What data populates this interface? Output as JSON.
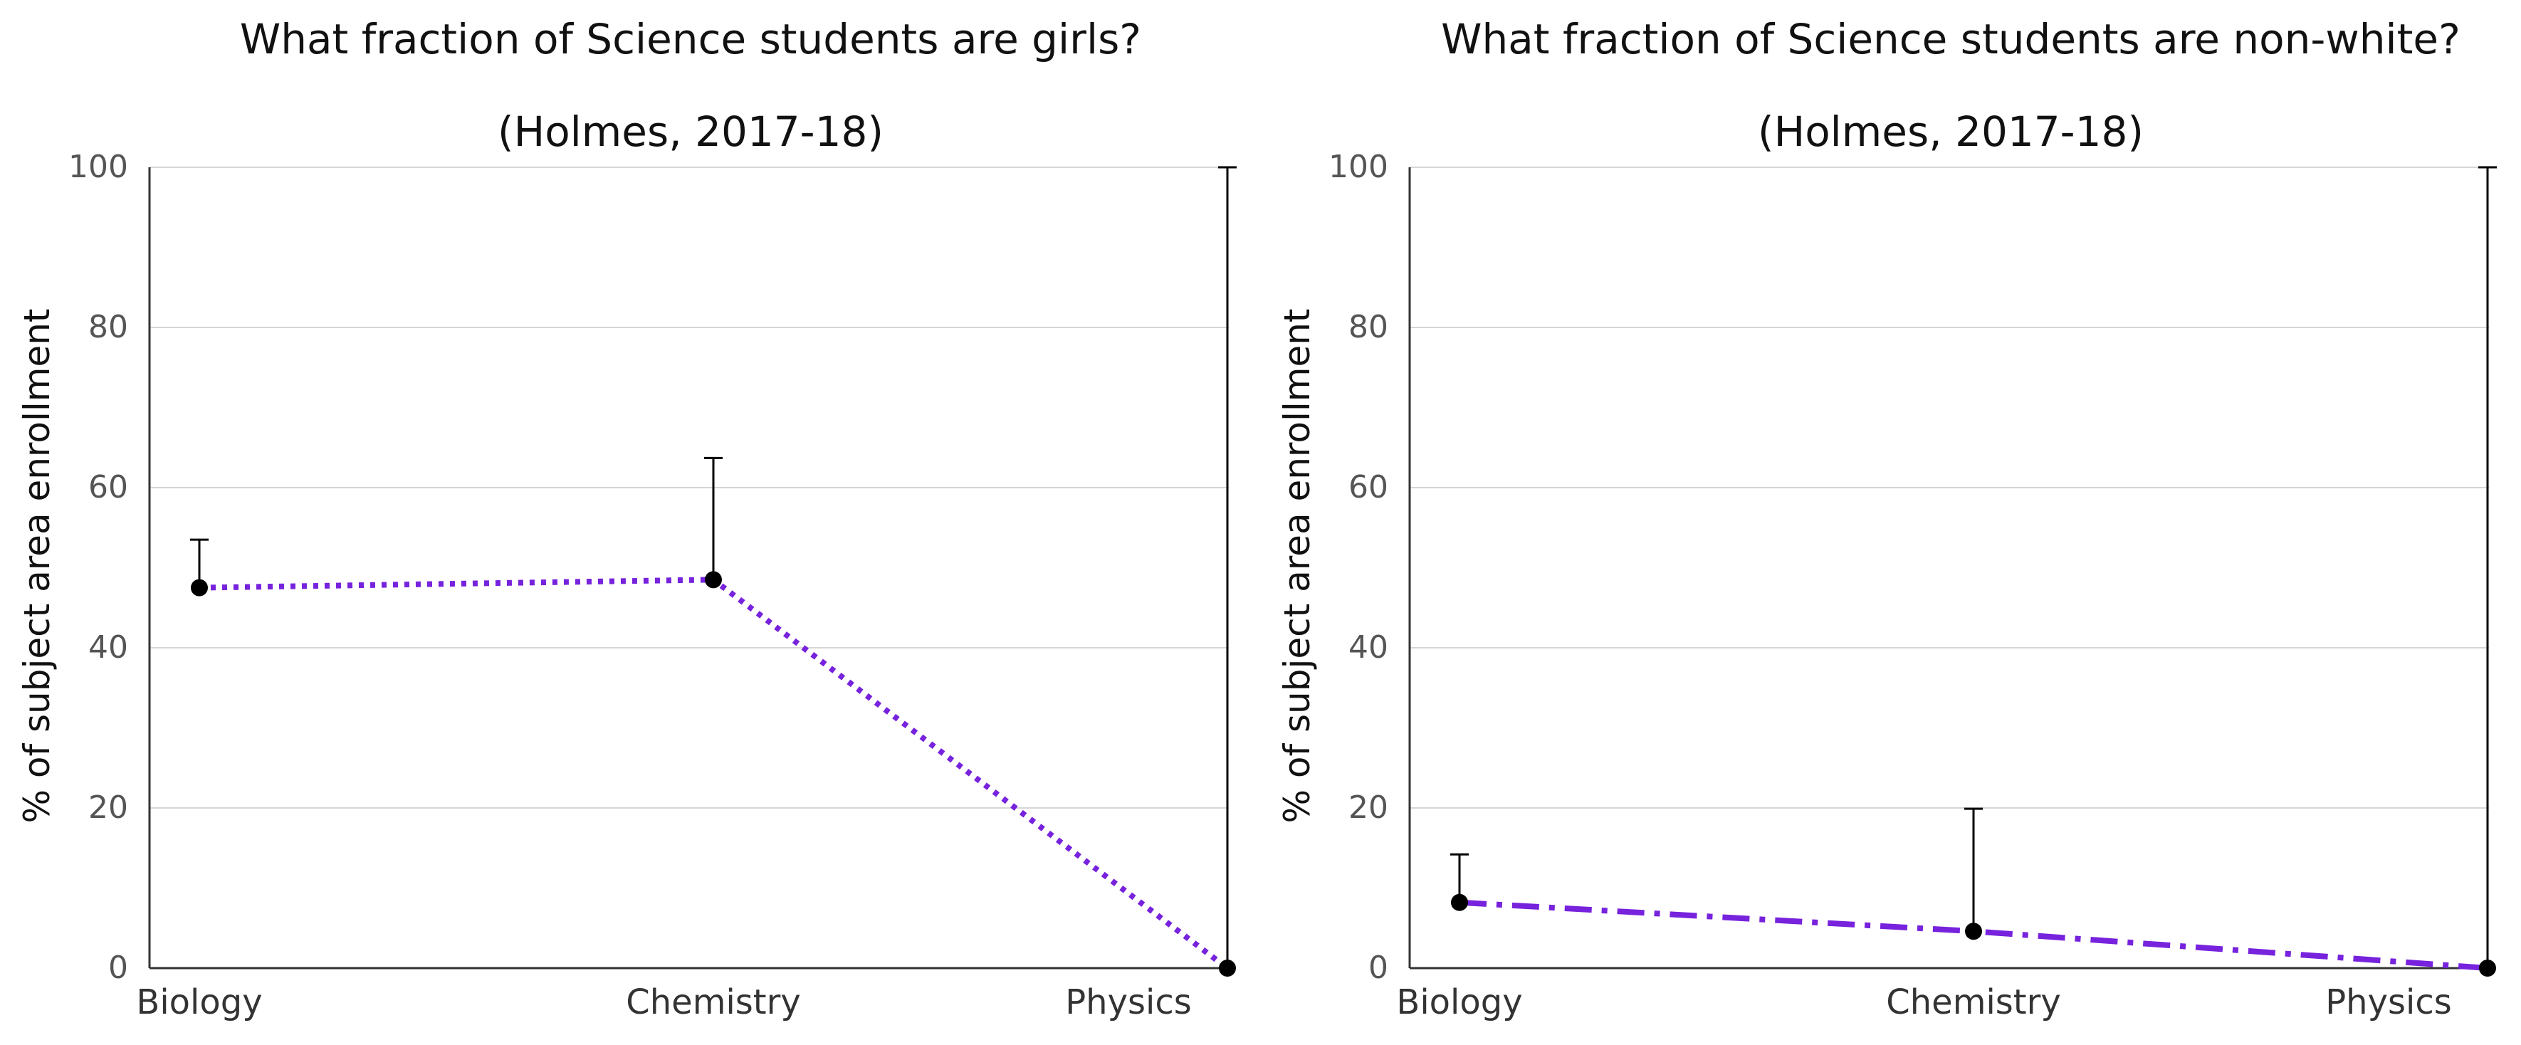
{
  "chart_data": [
    {
      "type": "line",
      "title": "What fraction of Science students are girls?",
      "subtitle": "(Holmes, 2017-18)",
      "xlabel": "",
      "ylabel": "% of subject area enrollment",
      "categories": [
        "Biology",
        "Chemistry",
        "Physics"
      ],
      "yticks": [
        "0",
        "20",
        "40",
        "60",
        "80",
        "100"
      ],
      "ylim": [
        0,
        100
      ],
      "grid": true,
      "line_style": "dotted",
      "line_color": "#7722dd",
      "series": [
        {
          "values": [
            47.5,
            48.5,
            0
          ],
          "error_upper": [
            53.5,
            63.7,
            100
          ]
        }
      ]
    },
    {
      "type": "line",
      "title": "What fraction of Science students are non-white?",
      "subtitle": "(Holmes, 2017-18)",
      "xlabel": "",
      "ylabel": "% of subject area enrollment",
      "categories": [
        "Biology",
        "Chemistry",
        "Physics"
      ],
      "yticks": [
        "0",
        "20",
        "40",
        "60",
        "80",
        "100"
      ],
      "ylim": [
        0,
        100
      ],
      "grid": true,
      "line_style": "dash-dot",
      "line_color": "#7722dd",
      "series": [
        {
          "values": [
            8.2,
            4.6,
            0
          ],
          "error_upper": [
            14.2,
            19.9,
            100
          ]
        }
      ]
    }
  ]
}
